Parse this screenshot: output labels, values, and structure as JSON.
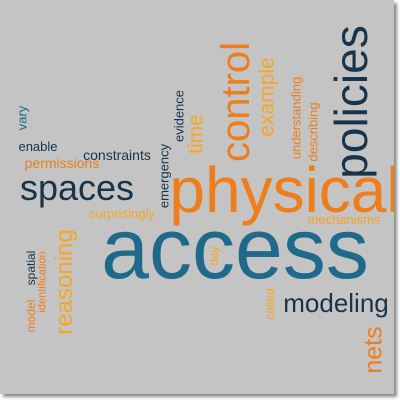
{
  "palette": {
    "background": "#c4c4c4",
    "dark_navy": "#17344a",
    "teal_blue": "#1f6a8a",
    "orange": "#ee7d1c",
    "gold": "#f6a623"
  },
  "words": {
    "access": "access",
    "physical": "physical",
    "policies": "policies",
    "control": "control",
    "spaces": "spaces",
    "modeling": "modeling",
    "reasoning": "reasoning",
    "example": "example",
    "nets": "nets",
    "time": "time",
    "constraints": "constraints",
    "permissions": "permissions",
    "enable": "enable",
    "vary": "vary",
    "evidence": "evidence",
    "emergency": "emergency",
    "understanding": "understanding",
    "describing": "describing",
    "surprisingly": "surprisingly",
    "mechanisms": "mechanisms",
    "identification": "identification",
    "spatial": "spatial",
    "model": "model",
    "day": "day",
    "called": "called"
  }
}
